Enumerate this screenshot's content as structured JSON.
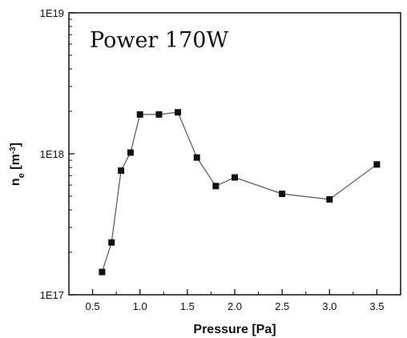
{
  "chart_data": {
    "type": "scatter",
    "title": "",
    "annotation": "Power 170W",
    "xlabel": "Pressure [Pa]",
    "ylabel_main": "n",
    "ylabel_sub": "e",
    "ylabel_unit": " [m",
    "ylabel_sup": "-3",
    "ylabel_close": "]",
    "xlim": [
      0.25,
      3.75
    ],
    "ylim": [
      1e+17,
      1e+19
    ],
    "yscale": "log",
    "grid": false,
    "x_ticks": [
      0.5,
      1.0,
      1.5,
      2.0,
      2.5,
      3.0,
      3.5
    ],
    "x_tick_labels": [
      "0.5",
      "1.0",
      "1.5",
      "2.0",
      "2.5",
      "3.0",
      "3.5"
    ],
    "y_ticks": [
      1e+17,
      1e+18,
      1e+19
    ],
    "y_tick_labels": [
      "1E17",
      "1E18",
      "1E19"
    ],
    "series": [
      {
        "marker": "square",
        "line": true,
        "color": "#111111",
        "line_color": "#555555",
        "x": [
          0.6,
          0.7,
          0.8,
          0.9,
          1.0,
          1.2,
          1.4,
          1.6,
          1.8,
          2.0,
          2.5,
          3.0,
          3.5
        ],
        "y": [
          1.45e+17,
          2.35e+17,
          7.6e+17,
          1.02e+18,
          1.9e+18,
          1.9e+18,
          1.97e+18,
          9.4e+17,
          5.9e+17,
          6.8e+17,
          5.2e+17,
          4.75e+17,
          8.4e+17
        ]
      }
    ]
  }
}
